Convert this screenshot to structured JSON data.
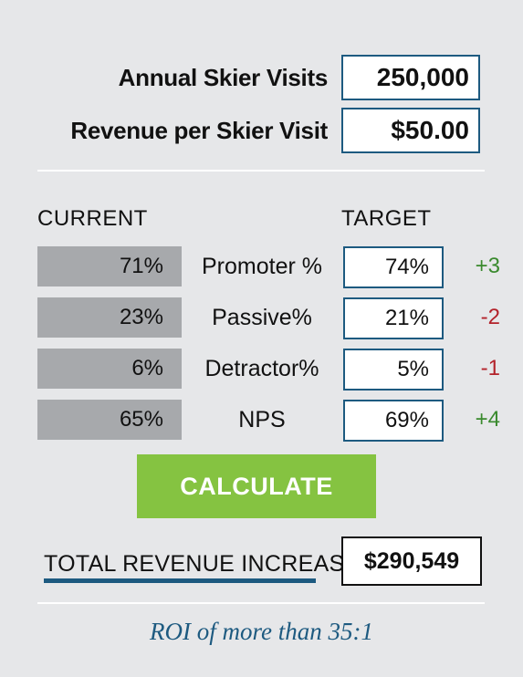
{
  "inputs": {
    "annual_visits_label": "Annual Skier Visits",
    "annual_visits_value": "250,000",
    "revenue_label": "Revenue per Skier Visit",
    "revenue_value": "$50.00"
  },
  "columns": {
    "current": "CURRENT",
    "target": "TARGET"
  },
  "rows": [
    {
      "current": "71%",
      "metric": "Promoter %",
      "target": "74%",
      "delta": "+3",
      "delta_color": "#3a8a2e"
    },
    {
      "current": "23%",
      "metric": "Passive%",
      "target": "21%",
      "delta": "-2",
      "delta_color": "#b3222a"
    },
    {
      "current": "6%",
      "metric": "Detractor%",
      "target": "5%",
      "delta": "-1",
      "delta_color": "#b3222a"
    },
    {
      "current": "65%",
      "metric": "NPS",
      "target": "69%",
      "delta": "+4",
      "delta_color": "#3a8a2e"
    }
  ],
  "calculate_label": "CALCULATE",
  "total": {
    "label": "TOTAL REVENUE INCREASE",
    "value": "$290,549"
  },
  "roi_text": "ROI of more than 35:1",
  "colors": {
    "accent": "#1d5a80",
    "button": "#85c341",
    "background": "#e6e7e9",
    "current_fill": "#a7a9ac"
  }
}
